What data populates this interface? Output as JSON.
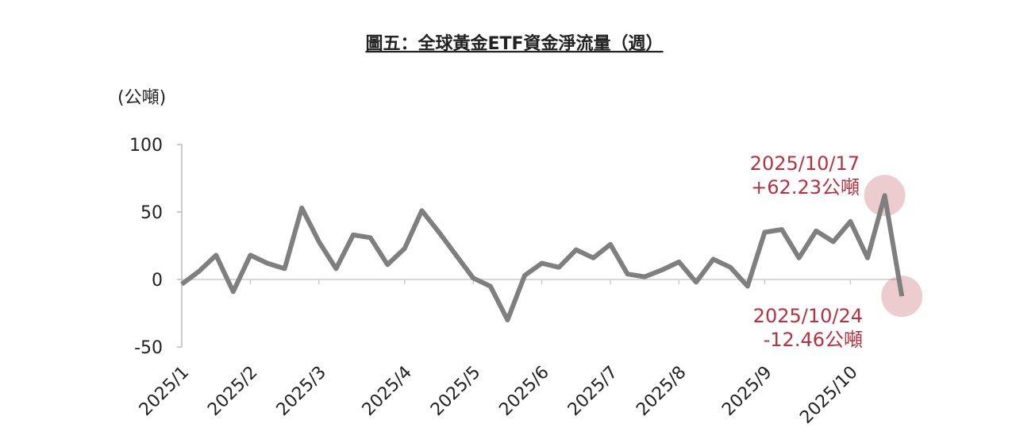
{
  "chart_data": {
    "type": "line",
    "title": "圖五：全球黃金ETF資金淨流量（週）",
    "y_label": "(公噸)",
    "categories": [
      "2025/1",
      null,
      null,
      null,
      "2025/2",
      null,
      null,
      null,
      "2025/3",
      null,
      null,
      null,
      null,
      "2025/4",
      null,
      null,
      null,
      "2025/5",
      null,
      null,
      null,
      "2025/6",
      null,
      null,
      null,
      "2025/7",
      null,
      null,
      null,
      "2025/8",
      null,
      null,
      null,
      null,
      "2025/9",
      null,
      null,
      null,
      null,
      "2025/10",
      null,
      null,
      null
    ],
    "series": [
      {
        "name": "全球黃金ETF資金淨流量",
        "color": "#7f7f7f",
        "values": [
          -3.5,
          6,
          18,
          -9,
          18,
          12,
          8,
          53,
          28,
          8,
          33,
          31,
          11,
          23,
          51,
          35,
          18,
          1,
          -5,
          -30,
          3,
          12,
          9,
          22,
          16,
          26,
          4,
          2,
          7,
          13,
          -2,
          15,
          9,
          -5,
          35,
          37,
          16,
          36,
          28,
          43,
          16,
          62.23,
          -12.46
        ]
      }
    ],
    "ylim": [
      -50,
      100
    ],
    "yticks": [
      -50,
      0,
      50,
      100
    ],
    "annotations": [
      [
        "2025/10/17",
        "+62.23公噸"
      ],
      [
        "2025/10/24",
        "-12.46公噸"
      ]
    ],
    "annotation_color": "#b5323e"
  }
}
